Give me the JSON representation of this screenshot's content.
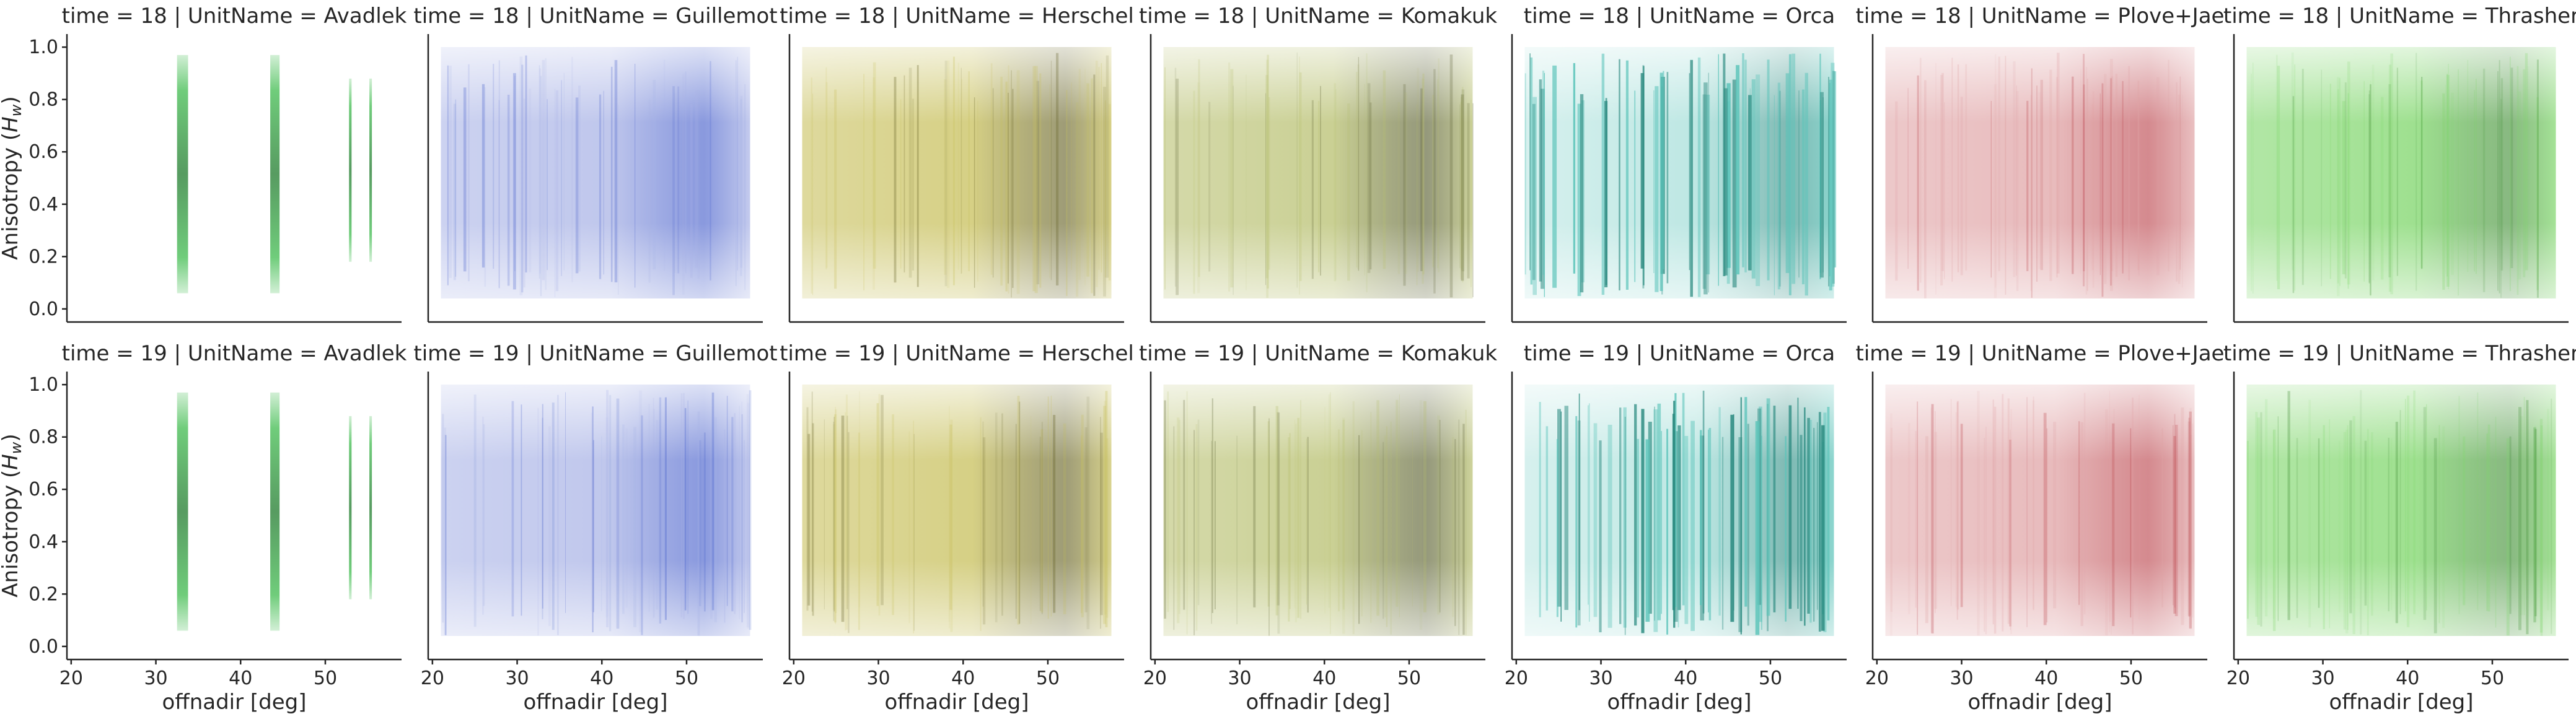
{
  "chart_data": {
    "type": "scatter",
    "layout": "facet-grid",
    "row_variable": "time",
    "col_variable": "UnitName",
    "rows": [
      "18",
      "19"
    ],
    "columns": [
      {
        "name": "Avadlek",
        "color": "#4cc05a",
        "dark": "#1f7a2c",
        "kind": "strips",
        "strips": [
          [
            32.5,
            33.8
          ],
          [
            43.5,
            44.6
          ],
          [
            52.8,
            53.1
          ],
          [
            55.2,
            55.5
          ]
        ]
      },
      {
        "name": "Guillemot",
        "color": "#aab4e6",
        "dark": "#3b55c8",
        "kind": "dense"
      },
      {
        "name": "Herschel",
        "color": "#c8c05c",
        "dark": "#5e5a1c",
        "kind": "dense"
      },
      {
        "name": "Komakuk",
        "color": "#b8c070",
        "dark": "#4e5424",
        "kind": "dense"
      },
      {
        "name": "Orca",
        "color": "#5cc4ba",
        "dark": "#2a8a80",
        "kind": "sparse"
      },
      {
        "name": "Plove+Jae",
        "color": "#e0a4a6",
        "dark": "#b83c44",
        "kind": "dense"
      },
      {
        "name": "Thrasher",
        "color": "#7ed66a",
        "dark": "#3a8a2e",
        "kind": "dense"
      }
    ],
    "panel_title_template": "time = {time} | UnitName = {unit}",
    "xlabel": "offnadir [deg]",
    "ylabel": "Anisotropy ($H_w$)",
    "ylabel_main": "Anisotropy (",
    "ylabel_sym": "H",
    "ylabel_sub": "w",
    "ylabel_close": ")",
    "xlim": [
      19.5,
      59
    ],
    "ylim": [
      -0.05,
      1.05
    ],
    "data_x_range": [
      21,
      57.5
    ],
    "data_y_range": [
      0.04,
      1.0
    ],
    "xticks": [
      20,
      30,
      40,
      50
    ],
    "yticks": [
      0.0,
      0.2,
      0.4,
      0.6,
      0.8,
      1.0
    ],
    "xtick_labels": [
      "20",
      "30",
      "40",
      "50"
    ],
    "ytick_labels": [
      "0.0",
      "0.2",
      "0.4",
      "0.6",
      "0.8",
      "1.0"
    ],
    "grid": false,
    "legend": "none"
  }
}
